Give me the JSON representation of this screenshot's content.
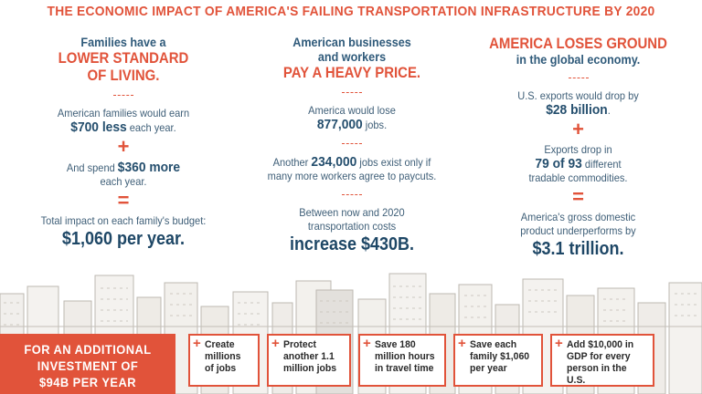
{
  "headline": "THE ECONOMIC IMPACT OF AMERICA'S FAILING TRANSPORTATION INFRASTRUCTURE BY 2020",
  "columns": [
    {
      "intro_blue": [
        "Families have a"
      ],
      "intro_red": [
        "LOWER STANDARD",
        "OF LIVING."
      ],
      "intro_after": "",
      "line1_a": "American families would earn",
      "line1_b_bold": "$700 less",
      "line1_b_rest": " each year.",
      "op1": "+",
      "line2_a": "And spend ",
      "line2_bold": "$360 more",
      "line2_b": "each year.",
      "op2": "=",
      "line3_a": "Total impact on each family's budget:",
      "line3_big": "$1,060 per year."
    },
    {
      "intro_blue": [
        "American businesses",
        "and workers"
      ],
      "intro_red": [
        "PAY A HEAVY PRICE."
      ],
      "intro_after": "",
      "line1_a": "America would lose",
      "line1_b_bold": "877,000",
      "line1_b_rest": " jobs.",
      "line2_a": "Another ",
      "line2_bold": "234,000",
      "line2_rest": " jobs exist only if",
      "line2_b": "many more workers agree to paycuts.",
      "line3_a": "Between now and 2020",
      "line3_b": "transportation costs",
      "line3_big": "increase $430B."
    },
    {
      "intro_red": [
        "AMERICA LOSES GROUND"
      ],
      "intro_after": "in the global economy.",
      "line1_a": "U.S. exports would drop by",
      "line1_b_bold": "$28 billion",
      "line1_b_rest": ".",
      "op1": "+",
      "line2_a": "Exports drop in",
      "line2_bold": "79 of 93",
      "line2_rest": " different",
      "line2_b": "tradable commodities.",
      "op2": "=",
      "line3_a": "America's gross domestic",
      "line3_b": "product underperforms by",
      "line3_big": "$3.1 trillion."
    }
  ],
  "cta": [
    "FOR AN ADDITIONAL",
    "INVESTMENT OF",
    "$94B PER YEAR"
  ],
  "cards": [
    {
      "plus": "+",
      "lines": [
        "Create",
        "millions",
        "of jobs"
      ]
    },
    {
      "plus": "+",
      "lines": [
        "Protect",
        "another 1.1",
        "million jobs"
      ]
    },
    {
      "plus": "+",
      "lines": [
        "Save 180",
        "million hours",
        "in travel time"
      ]
    },
    {
      "plus": "+",
      "lines": [
        "Save each",
        "family $1,060",
        "per year"
      ]
    },
    {
      "plus": "+",
      "lines": [
        "Add $10,000 in",
        "GDP for every",
        "person in the U.S."
      ]
    }
  ],
  "colors": {
    "accent": "#e1533a",
    "text_blue": "#2f5a7a",
    "dark_blue": "#1e4766",
    "skyline": "#c9c4bd"
  }
}
